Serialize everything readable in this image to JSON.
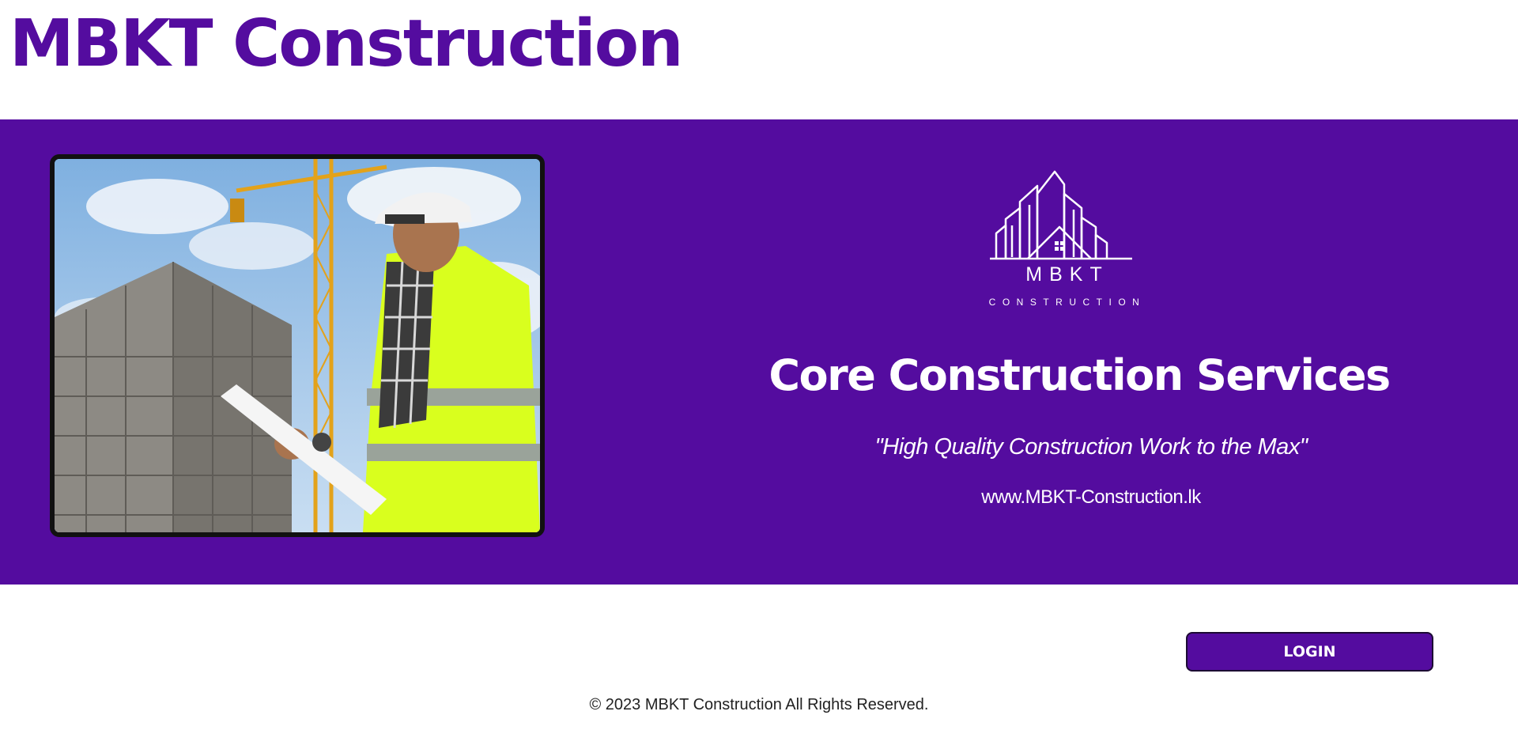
{
  "header": {
    "site_title": "MBKT Construction"
  },
  "hero": {
    "photo_icon": "construction-worker-photo",
    "logo": {
      "icon": "buildings-logo-icon",
      "name": "MBKT",
      "subtitle": "CONSTRUCTION"
    },
    "heading": "Core Construction Services",
    "tagline": "\"High Quality Construction Work to the Max\"",
    "url": "www.MBKT-Construction.lk"
  },
  "actions": {
    "login_label": "LOGIN"
  },
  "footer": {
    "copyright": "© 2023 MBKT Construction All Rights Reserved."
  },
  "colors": {
    "brand_purple": "#540c9f",
    "text_white": "#ffffff",
    "vest_yellow": "#d9ff1e"
  }
}
